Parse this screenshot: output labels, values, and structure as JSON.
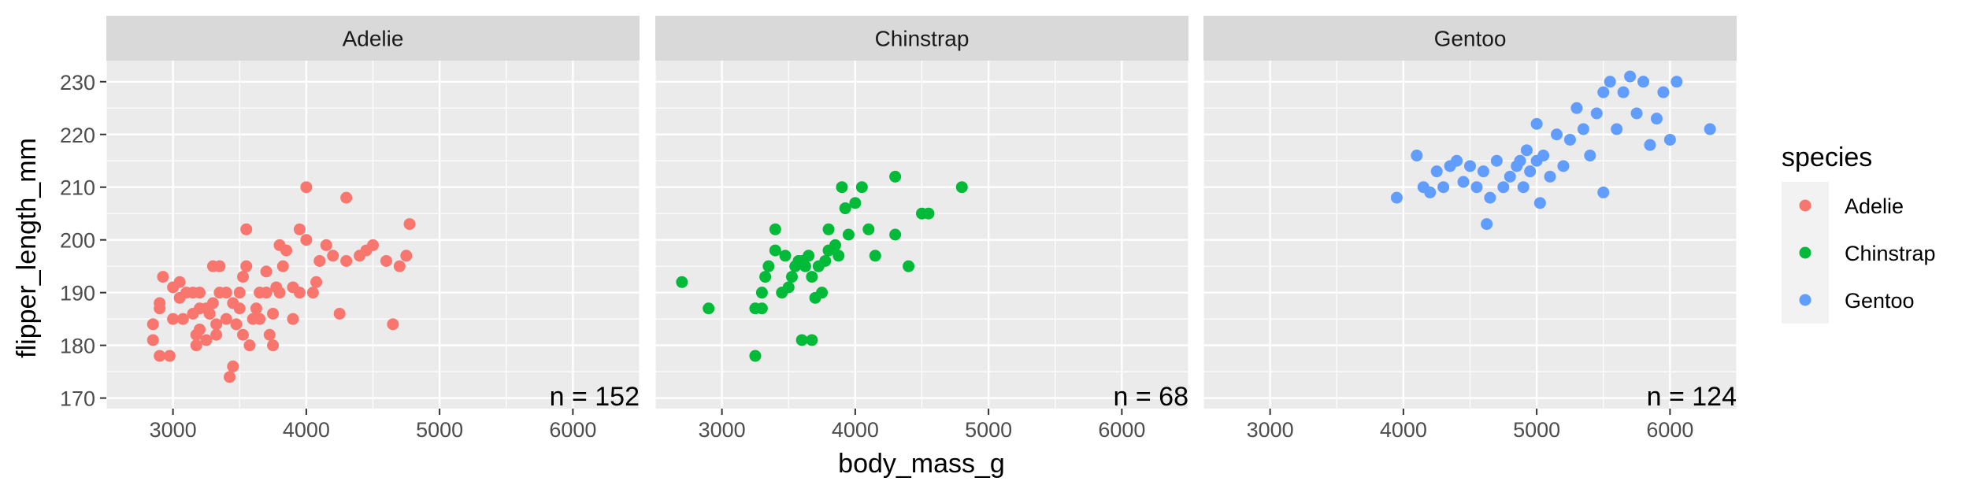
{
  "chart_data": {
    "type": "scatter",
    "xlabel": "body_mass_g",
    "ylabel": "flipper_length_mm",
    "xlim": [
      2500,
      6500
    ],
    "ylim": [
      168,
      234
    ],
    "x_ticks": [
      3000,
      4000,
      5000,
      6000
    ],
    "y_ticks": [
      170,
      180,
      190,
      200,
      210,
      220,
      230
    ],
    "grid": true,
    "facet_by": "species",
    "legend": {
      "title": "species",
      "placement": "right",
      "entries": [
        {
          "label": "Adelie",
          "color": "#F8766D"
        },
        {
          "label": "Chinstrap",
          "color": "#00BA38"
        },
        {
          "label": "Gentoo",
          "color": "#619CFF"
        }
      ]
    },
    "panels": [
      {
        "title": "Adelie",
        "color": "#F8766D",
        "annotation": "n = 152",
        "points": [
          [
            2850,
            181
          ],
          [
            2850,
            184
          ],
          [
            2900,
            178
          ],
          [
            2900,
            187
          ],
          [
            2900,
            188
          ],
          [
            2925,
            193
          ],
          [
            2975,
            178
          ],
          [
            3000,
            185
          ],
          [
            3000,
            191
          ],
          [
            3050,
            192
          ],
          [
            3050,
            189
          ],
          [
            3075,
            185
          ],
          [
            3100,
            190
          ],
          [
            3150,
            186
          ],
          [
            3150,
            190
          ],
          [
            3175,
            180
          ],
          [
            3175,
            182
          ],
          [
            3200,
            183
          ],
          [
            3200,
            187
          ],
          [
            3200,
            190
          ],
          [
            3250,
            181
          ],
          [
            3250,
            187
          ],
          [
            3275,
            186
          ],
          [
            3300,
            188
          ],
          [
            3300,
            195
          ],
          [
            3325,
            182
          ],
          [
            3325,
            184
          ],
          [
            3350,
            190
          ],
          [
            3350,
            195
          ],
          [
            3400,
            185
          ],
          [
            3400,
            190
          ],
          [
            3425,
            174
          ],
          [
            3450,
            176
          ],
          [
            3450,
            188
          ],
          [
            3475,
            184
          ],
          [
            3500,
            187
          ],
          [
            3500,
            190
          ],
          [
            3525,
            182
          ],
          [
            3525,
            193
          ],
          [
            3550,
            195
          ],
          [
            3550,
            202
          ],
          [
            3575,
            180
          ],
          [
            3600,
            185
          ],
          [
            3625,
            187
          ],
          [
            3650,
            185
          ],
          [
            3650,
            190
          ],
          [
            3700,
            190
          ],
          [
            3700,
            194
          ],
          [
            3725,
            182
          ],
          [
            3750,
            180
          ],
          [
            3750,
            186
          ],
          [
            3775,
            191
          ],
          [
            3800,
            190
          ],
          [
            3800,
            199
          ],
          [
            3825,
            195
          ],
          [
            3850,
            198
          ],
          [
            3900,
            185
          ],
          [
            3900,
            191
          ],
          [
            3950,
            190
          ],
          [
            3950,
            202
          ],
          [
            4000,
            200
          ],
          [
            4000,
            210
          ],
          [
            4050,
            190
          ],
          [
            4075,
            192
          ],
          [
            4100,
            196
          ],
          [
            4150,
            199
          ],
          [
            4200,
            197
          ],
          [
            4250,
            186
          ],
          [
            4300,
            196
          ],
          [
            4300,
            208
          ],
          [
            4400,
            197
          ],
          [
            4450,
            198
          ],
          [
            4500,
            199
          ],
          [
            4600,
            196
          ],
          [
            4650,
            184
          ],
          [
            4700,
            195
          ],
          [
            4750,
            197
          ],
          [
            4775,
            203
          ]
        ]
      },
      {
        "title": "Chinstrap",
        "color": "#00BA38",
        "annotation": "n = 68",
        "points": [
          [
            2700,
            192
          ],
          [
            2900,
            187
          ],
          [
            3250,
            178
          ],
          [
            3250,
            187
          ],
          [
            3300,
            187
          ],
          [
            3300,
            190
          ],
          [
            3325,
            193
          ],
          [
            3350,
            195
          ],
          [
            3400,
            198
          ],
          [
            3400,
            202
          ],
          [
            3450,
            190
          ],
          [
            3475,
            197
          ],
          [
            3500,
            191
          ],
          [
            3525,
            193
          ],
          [
            3550,
            195
          ],
          [
            3575,
            196
          ],
          [
            3600,
            181
          ],
          [
            3600,
            196
          ],
          [
            3625,
            195
          ],
          [
            3650,
            197
          ],
          [
            3675,
            181
          ],
          [
            3675,
            193
          ],
          [
            3700,
            189
          ],
          [
            3725,
            195
          ],
          [
            3750,
            190
          ],
          [
            3775,
            196
          ],
          [
            3800,
            198
          ],
          [
            3800,
            202
          ],
          [
            3850,
            199
          ],
          [
            3875,
            197
          ],
          [
            3900,
            210
          ],
          [
            3925,
            206
          ],
          [
            3950,
            201
          ],
          [
            4000,
            207
          ],
          [
            4050,
            210
          ],
          [
            4100,
            202
          ],
          [
            4150,
            197
          ],
          [
            4300,
            201
          ],
          [
            4300,
            212
          ],
          [
            4400,
            195
          ],
          [
            4500,
            205
          ],
          [
            4550,
            205
          ],
          [
            4800,
            210
          ]
        ]
      },
      {
        "title": "Gentoo",
        "color": "#619CFF",
        "annotation": "n = 124",
        "points": [
          [
            3950,
            208
          ],
          [
            4100,
            216
          ],
          [
            4150,
            210
          ],
          [
            4200,
            209
          ],
          [
            4250,
            213
          ],
          [
            4300,
            210
          ],
          [
            4350,
            214
          ],
          [
            4400,
            215
          ],
          [
            4450,
            211
          ],
          [
            4500,
            214
          ],
          [
            4550,
            210
          ],
          [
            4600,
            213
          ],
          [
            4625,
            203
          ],
          [
            4650,
            208
          ],
          [
            4700,
            215
          ],
          [
            4750,
            210
          ],
          [
            4800,
            212
          ],
          [
            4850,
            214
          ],
          [
            4875,
            215
          ],
          [
            4900,
            210
          ],
          [
            4925,
            217
          ],
          [
            4950,
            213
          ],
          [
            5000,
            215
          ],
          [
            5000,
            222
          ],
          [
            5025,
            207
          ],
          [
            5050,
            216
          ],
          [
            5100,
            212
          ],
          [
            5150,
            220
          ],
          [
            5200,
            214
          ],
          [
            5250,
            219
          ],
          [
            5300,
            225
          ],
          [
            5350,
            221
          ],
          [
            5400,
            216
          ],
          [
            5450,
            224
          ],
          [
            5500,
            209
          ],
          [
            5500,
            228
          ],
          [
            5550,
            230
          ],
          [
            5600,
            221
          ],
          [
            5650,
            228
          ],
          [
            5700,
            231
          ],
          [
            5750,
            224
          ],
          [
            5800,
            230
          ],
          [
            5850,
            218
          ],
          [
            5900,
            223
          ],
          [
            5950,
            228
          ],
          [
            6000,
            219
          ],
          [
            6050,
            230
          ],
          [
            6300,
            221
          ]
        ]
      }
    ]
  }
}
